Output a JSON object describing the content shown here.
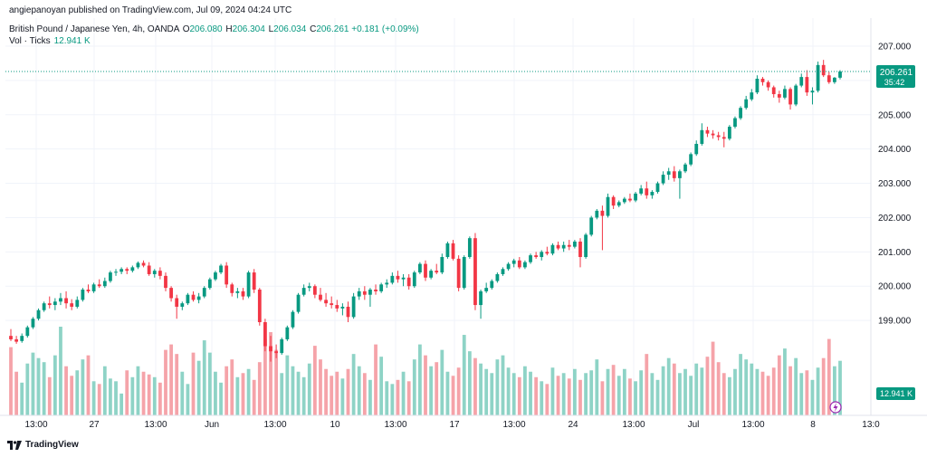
{
  "header": {
    "published_line": "angiepanoyan published on TradingView.com, Jul 09, 2024 04:24 UTC"
  },
  "legend": {
    "symbol": "British Pound / Japanese Yen, 4h, OANDA",
    "open_label": "O",
    "open": "206.080",
    "high_label": "H",
    "high": "206.304",
    "low_label": "L",
    "low": "206.034",
    "close_label": "C",
    "close": "206.261",
    "change": "+0.181 (+0.09%)",
    "vol_label": "Vol · Ticks",
    "vol_value": "12.941 K"
  },
  "price_badge": {
    "price": "206.261",
    "countdown": "35:42"
  },
  "volume_badge": "12.941 K",
  "footer": {
    "brand": "TradingView"
  },
  "colors": {
    "up": "#089981",
    "down": "#f23645",
    "vol_up": "#8ed3c6",
    "vol_down": "#f5a3a9",
    "grid": "#f0f3fa"
  },
  "chart_data": {
    "type": "candlestick",
    "symbol": "GBPJPY",
    "interval": "4h",
    "ylim": [
      198.0,
      207.0
    ],
    "y_ticks": [
      "199.000",
      "200.000",
      "201.000",
      "202.000",
      "203.000",
      "204.000",
      "205.000",
      "206.000",
      "207.000"
    ],
    "x_ticks": [
      "13:00",
      "27",
      "13:00",
      "Jun",
      "13:00",
      "10",
      "13:00",
      "17",
      "13:00",
      "24",
      "13:00",
      "Jul",
      "13:00",
      "8",
      "13:0"
    ],
    "last_price": 206.261,
    "candles": [
      {
        "o": 198.55,
        "h": 198.75,
        "l": 198.4,
        "c": 198.45
      },
      {
        "o": 198.45,
        "h": 198.55,
        "l": 198.32,
        "c": 198.38
      },
      {
        "o": 198.4,
        "h": 198.62,
        "l": 198.35,
        "c": 198.55
      },
      {
        "o": 198.55,
        "h": 198.85,
        "l": 198.5,
        "c": 198.8
      },
      {
        "o": 198.8,
        "h": 199.1,
        "l": 198.75,
        "c": 199.05
      },
      {
        "o": 199.05,
        "h": 199.35,
        "l": 199.0,
        "c": 199.3
      },
      {
        "o": 199.3,
        "h": 199.55,
        "l": 199.25,
        "c": 199.5
      },
      {
        "o": 199.5,
        "h": 199.7,
        "l": 199.35,
        "c": 199.45
      },
      {
        "o": 199.45,
        "h": 199.65,
        "l": 199.3,
        "c": 199.55
      },
      {
        "o": 199.55,
        "h": 199.8,
        "l": 199.45,
        "c": 199.65
      },
      {
        "o": 199.65,
        "h": 199.85,
        "l": 199.35,
        "c": 199.5
      },
      {
        "o": 199.5,
        "h": 199.62,
        "l": 199.3,
        "c": 199.4
      },
      {
        "o": 199.4,
        "h": 199.7,
        "l": 199.35,
        "c": 199.6
      },
      {
        "o": 199.6,
        "h": 199.95,
        "l": 199.55,
        "c": 199.9
      },
      {
        "o": 199.9,
        "h": 200.05,
        "l": 199.8,
        "c": 199.85
      },
      {
        "o": 199.85,
        "h": 200.1,
        "l": 199.8,
        "c": 200.05
      },
      {
        "o": 200.05,
        "h": 200.2,
        "l": 199.95,
        "c": 200.0
      },
      {
        "o": 200.0,
        "h": 200.25,
        "l": 199.95,
        "c": 200.15
      },
      {
        "o": 200.15,
        "h": 200.45,
        "l": 200.1,
        "c": 200.4
      },
      {
        "o": 200.4,
        "h": 200.5,
        "l": 200.3,
        "c": 200.42
      },
      {
        "o": 200.42,
        "h": 200.55,
        "l": 200.35,
        "c": 200.5
      },
      {
        "o": 200.5,
        "h": 200.55,
        "l": 200.35,
        "c": 200.45
      },
      {
        "o": 200.45,
        "h": 200.6,
        "l": 200.4,
        "c": 200.55
      },
      {
        "o": 200.55,
        "h": 200.72,
        "l": 200.5,
        "c": 200.68
      },
      {
        "o": 200.68,
        "h": 200.75,
        "l": 200.55,
        "c": 200.6
      },
      {
        "o": 200.6,
        "h": 200.7,
        "l": 200.3,
        "c": 200.35
      },
      {
        "o": 200.35,
        "h": 200.5,
        "l": 200.25,
        "c": 200.45
      },
      {
        "o": 200.45,
        "h": 200.55,
        "l": 200.2,
        "c": 200.3
      },
      {
        "o": 200.3,
        "h": 200.4,
        "l": 199.85,
        "c": 199.95
      },
      {
        "o": 199.95,
        "h": 200.0,
        "l": 199.55,
        "c": 199.65
      },
      {
        "o": 199.65,
        "h": 199.75,
        "l": 199.05,
        "c": 199.4
      },
      {
        "o": 199.4,
        "h": 199.55,
        "l": 199.3,
        "c": 199.5
      },
      {
        "o": 199.5,
        "h": 199.8,
        "l": 199.45,
        "c": 199.75
      },
      {
        "o": 199.75,
        "h": 199.85,
        "l": 199.55,
        "c": 199.6
      },
      {
        "o": 199.6,
        "h": 199.8,
        "l": 199.5,
        "c": 199.7
      },
      {
        "o": 199.7,
        "h": 200.0,
        "l": 199.65,
        "c": 199.95
      },
      {
        "o": 199.95,
        "h": 200.25,
        "l": 199.9,
        "c": 200.2
      },
      {
        "o": 200.2,
        "h": 200.45,
        "l": 200.15,
        "c": 200.4
      },
      {
        "o": 200.4,
        "h": 200.65,
        "l": 200.35,
        "c": 200.6
      },
      {
        "o": 200.6,
        "h": 200.7,
        "l": 199.95,
        "c": 200.05
      },
      {
        "o": 200.05,
        "h": 200.1,
        "l": 199.7,
        "c": 199.8
      },
      {
        "o": 199.8,
        "h": 199.95,
        "l": 199.65,
        "c": 199.85
      },
      {
        "o": 199.85,
        "h": 199.95,
        "l": 199.6,
        "c": 199.7
      },
      {
        "o": 199.7,
        "h": 200.45,
        "l": 199.65,
        "c": 200.4
      },
      {
        "o": 200.4,
        "h": 200.5,
        "l": 199.8,
        "c": 199.9
      },
      {
        "o": 199.9,
        "h": 199.95,
        "l": 198.85,
        "c": 198.95
      },
      {
        "o": 198.95,
        "h": 199.05,
        "l": 198.1,
        "c": 198.25
      },
      {
        "o": 198.25,
        "h": 198.55,
        "l": 197.8,
        "c": 198.1
      },
      {
        "o": 198.1,
        "h": 198.3,
        "l": 197.9,
        "c": 198.05
      },
      {
        "o": 198.05,
        "h": 198.5,
        "l": 198.0,
        "c": 198.45
      },
      {
        "o": 198.45,
        "h": 198.85,
        "l": 198.4,
        "c": 198.8
      },
      {
        "o": 198.8,
        "h": 199.3,
        "l": 198.75,
        "c": 199.25
      },
      {
        "o": 199.25,
        "h": 199.8,
        "l": 199.2,
        "c": 199.75
      },
      {
        "o": 199.75,
        "h": 200.05,
        "l": 199.7,
        "c": 199.95
      },
      {
        "o": 199.95,
        "h": 200.1,
        "l": 199.85,
        "c": 200.0
      },
      {
        "o": 200.0,
        "h": 200.05,
        "l": 199.65,
        "c": 199.75
      },
      {
        "o": 199.75,
        "h": 199.95,
        "l": 199.55,
        "c": 199.6
      },
      {
        "o": 199.6,
        "h": 199.8,
        "l": 199.4,
        "c": 199.5
      },
      {
        "o": 199.5,
        "h": 199.7,
        "l": 199.35,
        "c": 199.45
      },
      {
        "o": 199.45,
        "h": 199.6,
        "l": 199.25,
        "c": 199.35
      },
      {
        "o": 199.35,
        "h": 199.5,
        "l": 199.15,
        "c": 199.4
      },
      {
        "o": 199.4,
        "h": 199.55,
        "l": 198.95,
        "c": 199.1
      },
      {
        "o": 199.1,
        "h": 199.8,
        "l": 199.05,
        "c": 199.7
      },
      {
        "o": 199.7,
        "h": 199.95,
        "l": 199.6,
        "c": 199.85
      },
      {
        "o": 199.85,
        "h": 200.0,
        "l": 199.6,
        "c": 199.75
      },
      {
        "o": 199.75,
        "h": 199.95,
        "l": 199.4,
        "c": 199.9
      },
      {
        "o": 199.9,
        "h": 200.05,
        "l": 199.75,
        "c": 199.85
      },
      {
        "o": 199.85,
        "h": 200.1,
        "l": 199.8,
        "c": 200.05
      },
      {
        "o": 200.05,
        "h": 200.2,
        "l": 199.95,
        "c": 200.1
      },
      {
        "o": 200.1,
        "h": 200.4,
        "l": 200.05,
        "c": 200.3
      },
      {
        "o": 200.3,
        "h": 200.45,
        "l": 200.1,
        "c": 200.2
      },
      {
        "o": 200.2,
        "h": 200.35,
        "l": 200.0,
        "c": 200.25
      },
      {
        "o": 200.25,
        "h": 200.35,
        "l": 199.9,
        "c": 200.0
      },
      {
        "o": 200.0,
        "h": 200.45,
        "l": 199.95,
        "c": 200.4
      },
      {
        "o": 200.4,
        "h": 200.7,
        "l": 200.35,
        "c": 200.65
      },
      {
        "o": 200.65,
        "h": 200.75,
        "l": 200.15,
        "c": 200.25
      },
      {
        "o": 200.25,
        "h": 200.5,
        "l": 200.2,
        "c": 200.45
      },
      {
        "o": 200.45,
        "h": 200.65,
        "l": 200.35,
        "c": 200.4
      },
      {
        "o": 200.4,
        "h": 200.95,
        "l": 200.35,
        "c": 200.85
      },
      {
        "o": 200.85,
        "h": 201.3,
        "l": 200.8,
        "c": 201.25
      },
      {
        "o": 201.25,
        "h": 201.35,
        "l": 200.75,
        "c": 200.8
      },
      {
        "o": 200.8,
        "h": 200.9,
        "l": 199.85,
        "c": 199.95
      },
      {
        "o": 199.95,
        "h": 200.9,
        "l": 199.9,
        "c": 200.85
      },
      {
        "o": 200.85,
        "h": 201.45,
        "l": 200.8,
        "c": 201.4
      },
      {
        "o": 201.4,
        "h": 201.55,
        "l": 199.3,
        "c": 199.45
      },
      {
        "o": 199.45,
        "h": 199.9,
        "l": 199.05,
        "c": 199.85
      },
      {
        "o": 199.85,
        "h": 200.1,
        "l": 199.8,
        "c": 199.95
      },
      {
        "o": 199.95,
        "h": 200.2,
        "l": 199.9,
        "c": 200.15
      },
      {
        "o": 200.15,
        "h": 200.4,
        "l": 200.1,
        "c": 200.35
      },
      {
        "o": 200.35,
        "h": 200.55,
        "l": 200.3,
        "c": 200.5
      },
      {
        "o": 200.5,
        "h": 200.7,
        "l": 200.45,
        "c": 200.65
      },
      {
        "o": 200.65,
        "h": 200.8,
        "l": 200.55,
        "c": 200.75
      },
      {
        "o": 200.75,
        "h": 200.85,
        "l": 200.5,
        "c": 200.55
      },
      {
        "o": 200.55,
        "h": 200.75,
        "l": 200.5,
        "c": 200.7
      },
      {
        "o": 200.7,
        "h": 200.95,
        "l": 200.65,
        "c": 200.9
      },
      {
        "o": 200.9,
        "h": 201.0,
        "l": 200.8,
        "c": 200.85
      },
      {
        "o": 200.85,
        "h": 201.05,
        "l": 200.75,
        "c": 201.0
      },
      {
        "o": 201.0,
        "h": 201.15,
        "l": 200.9,
        "c": 200.95
      },
      {
        "o": 200.95,
        "h": 201.25,
        "l": 200.9,
        "c": 201.2
      },
      {
        "o": 201.2,
        "h": 201.3,
        "l": 201.05,
        "c": 201.1
      },
      {
        "o": 201.1,
        "h": 201.3,
        "l": 201.0,
        "c": 201.2
      },
      {
        "o": 201.2,
        "h": 201.35,
        "l": 201.05,
        "c": 201.15
      },
      {
        "o": 201.15,
        "h": 201.35,
        "l": 201.1,
        "c": 201.3
      },
      {
        "o": 201.3,
        "h": 201.4,
        "l": 200.55,
        "c": 200.85
      },
      {
        "o": 200.85,
        "h": 201.55,
        "l": 200.8,
        "c": 201.5
      },
      {
        "o": 201.5,
        "h": 202.05,
        "l": 201.45,
        "c": 202.0
      },
      {
        "o": 202.0,
        "h": 202.25,
        "l": 201.95,
        "c": 202.2
      },
      {
        "o": 202.2,
        "h": 202.35,
        "l": 201.05,
        "c": 202.05
      },
      {
        "o": 202.05,
        "h": 202.7,
        "l": 202.0,
        "c": 202.6
      },
      {
        "o": 202.6,
        "h": 202.65,
        "l": 202.25,
        "c": 202.35
      },
      {
        "o": 202.35,
        "h": 202.5,
        "l": 202.3,
        "c": 202.45
      },
      {
        "o": 202.45,
        "h": 202.6,
        "l": 202.4,
        "c": 202.55
      },
      {
        "o": 202.55,
        "h": 202.7,
        "l": 202.45,
        "c": 202.5
      },
      {
        "o": 202.5,
        "h": 202.75,
        "l": 202.45,
        "c": 202.7
      },
      {
        "o": 202.7,
        "h": 202.95,
        "l": 202.65,
        "c": 202.85
      },
      {
        "o": 202.85,
        "h": 203.05,
        "l": 202.55,
        "c": 202.65
      },
      {
        "o": 202.65,
        "h": 202.8,
        "l": 202.55,
        "c": 202.75
      },
      {
        "o": 202.75,
        "h": 203.05,
        "l": 202.7,
        "c": 203.0
      },
      {
        "o": 203.0,
        "h": 203.35,
        "l": 202.95,
        "c": 203.25
      },
      {
        "o": 203.25,
        "h": 203.45,
        "l": 203.1,
        "c": 203.35
      },
      {
        "o": 203.35,
        "h": 203.5,
        "l": 203.05,
        "c": 203.15
      },
      {
        "o": 203.15,
        "h": 203.4,
        "l": 202.55,
        "c": 203.35
      },
      {
        "o": 203.35,
        "h": 203.6,
        "l": 203.3,
        "c": 203.55
      },
      {
        "o": 203.55,
        "h": 203.9,
        "l": 203.5,
        "c": 203.85
      },
      {
        "o": 203.85,
        "h": 204.25,
        "l": 203.8,
        "c": 204.15
      },
      {
        "o": 204.15,
        "h": 204.75,
        "l": 204.1,
        "c": 204.55
      },
      {
        "o": 204.55,
        "h": 204.65,
        "l": 204.35,
        "c": 204.45
      },
      {
        "o": 204.45,
        "h": 204.55,
        "l": 204.3,
        "c": 204.4
      },
      {
        "o": 204.4,
        "h": 204.5,
        "l": 204.25,
        "c": 204.35
      },
      {
        "o": 204.35,
        "h": 204.5,
        "l": 204.05,
        "c": 204.3
      },
      {
        "o": 204.3,
        "h": 204.7,
        "l": 204.25,
        "c": 204.65
      },
      {
        "o": 204.65,
        "h": 204.95,
        "l": 204.6,
        "c": 204.9
      },
      {
        "o": 204.9,
        "h": 205.25,
        "l": 204.85,
        "c": 205.2
      },
      {
        "o": 205.2,
        "h": 205.55,
        "l": 205.15,
        "c": 205.45
      },
      {
        "o": 205.45,
        "h": 205.75,
        "l": 205.4,
        "c": 205.65
      },
      {
        "o": 205.65,
        "h": 206.15,
        "l": 205.6,
        "c": 206.05
      },
      {
        "o": 206.05,
        "h": 206.1,
        "l": 205.85,
        "c": 205.95
      },
      {
        "o": 205.95,
        "h": 206.0,
        "l": 205.7,
        "c": 205.8
      },
      {
        "o": 205.8,
        "h": 205.85,
        "l": 205.5,
        "c": 205.6
      },
      {
        "o": 205.6,
        "h": 205.7,
        "l": 205.35,
        "c": 205.5
      },
      {
        "o": 205.5,
        "h": 205.85,
        "l": 205.45,
        "c": 205.75
      },
      {
        "o": 205.75,
        "h": 205.8,
        "l": 205.15,
        "c": 205.3
      },
      {
        "o": 205.3,
        "h": 205.9,
        "l": 205.25,
        "c": 205.85
      },
      {
        "o": 205.85,
        "h": 206.2,
        "l": 205.8,
        "c": 206.1
      },
      {
        "o": 206.1,
        "h": 206.3,
        "l": 205.55,
        "c": 205.65
      },
      {
        "o": 205.65,
        "h": 205.8,
        "l": 205.3,
        "c": 205.7
      },
      {
        "o": 205.7,
        "h": 206.55,
        "l": 205.65,
        "c": 206.45
      },
      {
        "o": 206.45,
        "h": 206.6,
        "l": 206.1,
        "c": 206.15
      },
      {
        "o": 206.15,
        "h": 206.25,
        "l": 205.9,
        "c": 205.95
      },
      {
        "o": 205.95,
        "h": 206.1,
        "l": 205.9,
        "c": 206.08
      },
      {
        "o": 206.08,
        "h": 206.3,
        "l": 206.03,
        "c": 206.26
      }
    ],
    "volume": [
      5.0,
      3.2,
      2.4,
      3.8,
      4.6,
      4.2,
      3.9,
      2.8,
      4.4,
      6.5,
      3.6,
      2.9,
      3.3,
      4.1,
      4.4,
      2.5,
      2.3,
      3.6,
      2.7,
      2.5,
      1.6,
      3.3,
      2.8,
      3.6,
      3.2,
      3.0,
      2.8,
      2.4,
      4.8,
      5.2,
      4.5,
      3.2,
      2.3,
      4.6,
      4.0,
      5.5,
      4.6,
      3.2,
      2.4,
      3.6,
      4.1,
      2.8,
      3.1,
      3.4,
      2.6,
      3.9,
      5.6,
      6.1,
      4.8,
      3.1,
      4.4,
      3.6,
      3.2,
      2.8,
      3.8,
      5.1,
      4.1,
      3.4,
      2.9,
      3.2,
      2.7,
      3.4,
      4.5,
      3.6,
      3.1,
      2.6,
      5.2,
      4.3,
      2.5,
      2.3,
      2.6,
      3.2,
      2.5,
      4.1,
      5.2,
      4.4,
      3.6,
      3.9,
      4.8,
      3.2,
      2.9,
      3.5,
      5.9,
      4.7,
      4.2,
      3.8,
      3.4,
      3.1,
      4.1,
      4.4,
      3.5,
      3.1,
      2.8,
      3.6,
      3.2,
      2.8,
      2.5,
      2.3,
      3.5,
      2.9,
      3.1,
      2.7,
      3.4,
      2.6,
      3.1,
      3.3,
      4.1,
      2.5,
      3.4,
      3.7,
      2.9,
      3.4,
      2.7,
      2.5,
      3.3,
      4.5,
      3.1,
      2.6,
      3.6,
      4.2,
      3.8,
      3.1,
      3.4,
      2.9,
      3.8,
      3.5,
      4.3,
      5.4,
      3.9,
      3.1,
      2.8,
      3.4,
      4.5,
      4.1,
      3.8,
      3.4,
      3.2,
      2.9,
      3.5,
      4.4,
      4.9,
      3.6,
      4.2,
      3.1,
      3.3,
      2.6,
      3.5,
      4.2,
      5.6,
      3.6,
      4.0,
      3.5,
      3.3,
      2.1,
      1.8,
      1.5,
      0.9
    ]
  }
}
